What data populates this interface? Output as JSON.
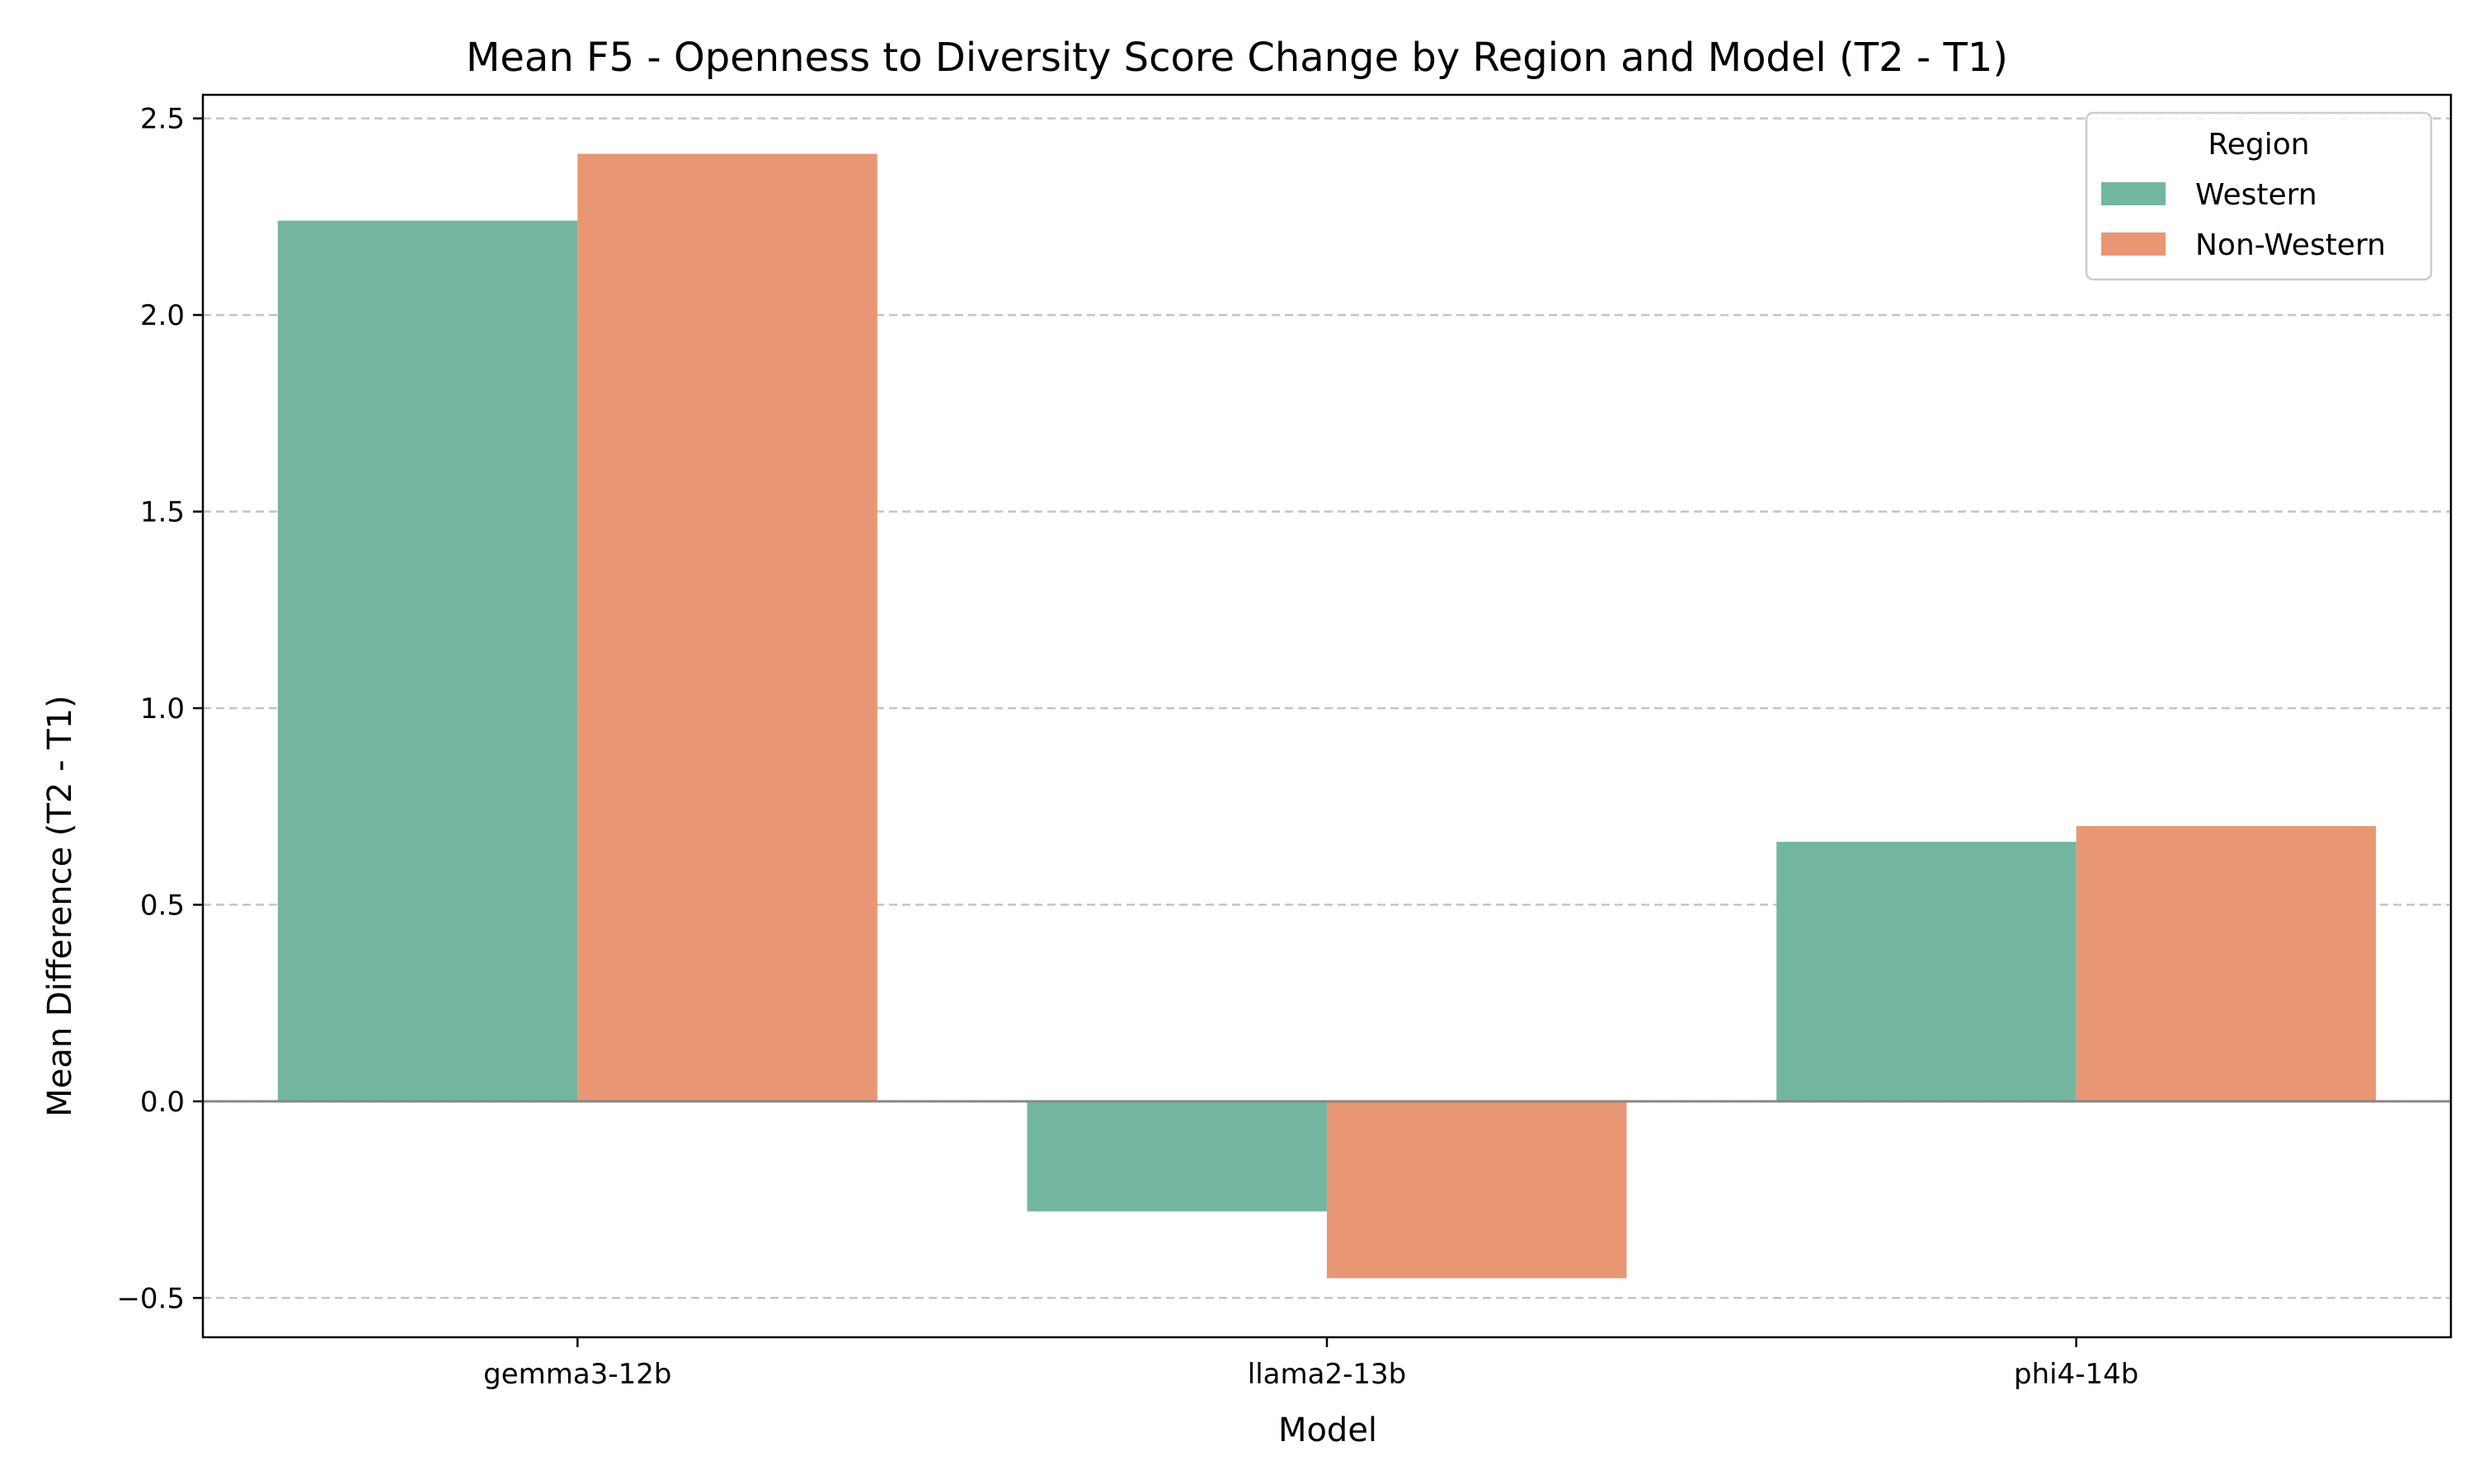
{
  "chart_data": {
    "type": "bar",
    "title": "Mean F5 - Openness to Diversity Score Change by Region and Model (T2 - T1)",
    "xlabel": "Model",
    "ylabel": "Mean Difference (T2 - T1)",
    "categories": [
      "gemma3-12b",
      "llama2-13b",
      "phi4-14b"
    ],
    "series": [
      {
        "name": "Western",
        "color": "#72b6a0",
        "values": [
          2.24,
          -0.28,
          0.66
        ]
      },
      {
        "name": "Non-Western",
        "color": "#e99675",
        "values": [
          2.41,
          -0.45,
          0.7
        ]
      }
    ],
    "ylim": [
      -0.6,
      2.56
    ],
    "yticks": [
      -0.5,
      0.0,
      0.5,
      1.0,
      1.5,
      2.0,
      2.5
    ],
    "ytick_labels": [
      "−0.5",
      "0.0",
      "0.5",
      "1.0",
      "1.5",
      "2.0",
      "2.5"
    ],
    "grid": "y-dashed",
    "legend": {
      "title": "Region",
      "placement": "top-right"
    }
  }
}
